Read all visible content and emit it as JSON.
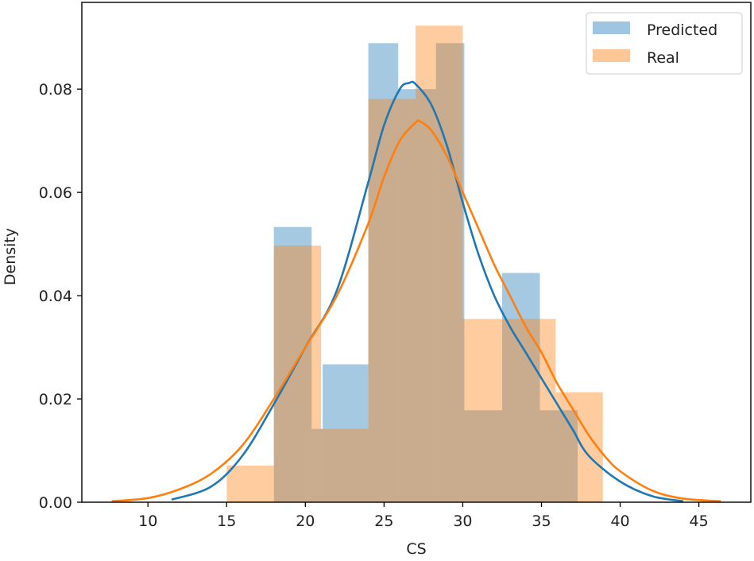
{
  "chart_data": {
    "type": "bar",
    "subtype": "histogram_with_kde",
    "title": "",
    "xlabel": "CS",
    "ylabel": "Density",
    "xlim": [
      5.8,
      48.3
    ],
    "ylim": [
      0,
      0.0968
    ],
    "xticks": [
      10,
      15,
      20,
      25,
      30,
      35,
      40,
      45
    ],
    "yticks": [
      0.0,
      0.02,
      0.04,
      0.06,
      0.08
    ],
    "ytick_labels": [
      "0.00",
      "0.02",
      "0.04",
      "0.06",
      "0.08"
    ],
    "grid": false,
    "legend_position": "upper right",
    "series": [
      {
        "name": "Predicted",
        "color": "#1f77b4",
        "bar_color": "#9fc5e1",
        "bins": [
          {
            "x0": 18.0,
            "x1": 20.4,
            "density": 0.0533
          },
          {
            "x0": 20.4,
            "x1": 21.1,
            "density": 0.0142
          },
          {
            "x0": 21.1,
            "x1": 24.0,
            "density": 0.0267
          },
          {
            "x0": 24.0,
            "x1": 25.9,
            "density": 0.0889
          },
          {
            "x0": 25.9,
            "x1": 28.3,
            "density": 0.08
          },
          {
            "x0": 28.3,
            "x1": 30.1,
            "density": 0.0889
          },
          {
            "x0": 30.1,
            "x1": 32.5,
            "density": 0.0178
          },
          {
            "x0": 32.5,
            "x1": 34.9,
            "density": 0.0444
          },
          {
            "x0": 34.9,
            "x1": 37.3,
            "density": 0.0178
          }
        ],
        "kde": {
          "x": [
            11.5,
            14,
            16,
            18,
            20,
            22,
            24,
            25,
            26,
            26.6,
            27,
            28,
            29,
            30,
            31,
            32,
            33,
            34,
            35,
            36,
            37,
            38,
            40,
            42,
            44
          ],
          "y": [
            0.0005,
            0.003,
            0.009,
            0.019,
            0.03,
            0.041,
            0.062,
            0.073,
            0.08,
            0.0812,
            0.081,
            0.077,
            0.069,
            0.058,
            0.048,
            0.04,
            0.034,
            0.029,
            0.024,
            0.019,
            0.014,
            0.009,
            0.004,
            0.0012,
            0.0002
          ]
        }
      },
      {
        "name": "Real",
        "color": "#ff7f0e",
        "bar_color": "#ffc797",
        "bins": [
          {
            "x0": 15.0,
            "x1": 18.0,
            "density": 0.0071
          },
          {
            "x0": 18.0,
            "x1": 21.0,
            "density": 0.0497
          },
          {
            "x0": 21.0,
            "x1": 24.0,
            "density": 0.0142
          },
          {
            "x0": 24.0,
            "x1": 27.0,
            "density": 0.0781
          },
          {
            "x0": 27.0,
            "x1": 30.0,
            "density": 0.0923
          },
          {
            "x0": 30.0,
            "x1": 32.9,
            "density": 0.0355
          },
          {
            "x0": 32.9,
            "x1": 35.9,
            "density": 0.0355
          },
          {
            "x0": 35.9,
            "x1": 38.9,
            "density": 0.0213
          }
        ],
        "kde": {
          "x": [
            7.7,
            10,
            12,
            14,
            16,
            18,
            20,
            22,
            24,
            25,
            26,
            27,
            27.3,
            28,
            29,
            30,
            31,
            32,
            33,
            34,
            35,
            36,
            37,
            38,
            39,
            40,
            42,
            44,
            46.4
          ],
          "y": [
            0.0002,
            0.0008,
            0.0025,
            0.0055,
            0.011,
            0.02,
            0.03,
            0.04,
            0.054,
            0.063,
            0.07,
            0.0735,
            0.0737,
            0.072,
            0.067,
            0.06,
            0.053,
            0.046,
            0.04,
            0.034,
            0.029,
            0.023,
            0.018,
            0.013,
            0.009,
            0.006,
            0.0023,
            0.0007,
            0.0002
          ]
        }
      }
    ]
  },
  "legend": {
    "items": [
      {
        "label": "Predicted"
      },
      {
        "label": "Real"
      }
    ]
  }
}
